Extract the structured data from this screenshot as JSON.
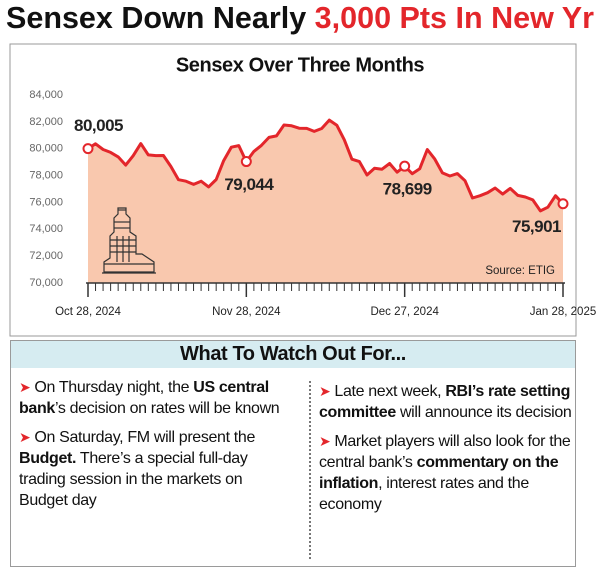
{
  "headline": {
    "plain": "Sensex Down Nearly ",
    "highlight": "3,000 Pts In New Yr"
  },
  "chart_data": {
    "type": "area-line",
    "title": "Sensex Over Three Months",
    "source": "Source: ETIG",
    "categories": [
      "Oct 28, 2024",
      null,
      null,
      null,
      null,
      null,
      null,
      null,
      null,
      null,
      null,
      null,
      null,
      null,
      null,
      null,
      null,
      null,
      null,
      null,
      null,
      "Nov 28, 2024",
      null,
      null,
      null,
      null,
      null,
      null,
      null,
      null,
      null,
      null,
      null,
      null,
      null,
      null,
      null,
      null,
      null,
      null,
      null,
      null,
      "Dec 27, 2024",
      null,
      null,
      null,
      null,
      null,
      null,
      null,
      null,
      null,
      null,
      null,
      null,
      null,
      null,
      null,
      null,
      null,
      null,
      null,
      null,
      "Jan 28, 2025"
    ],
    "values": [
      80005,
      80369,
      79942,
      79725,
      79389,
      78782,
      79477,
      80379,
      79541,
      79486,
      79496,
      78675,
      77691,
      77580,
      77339,
      77578,
      77156,
      77711,
      79118,
      80110,
      80235,
      79044,
      79803,
      80248,
      80846,
      80956,
      81766,
      81709,
      81526,
      81511,
      81290,
      81509,
      82133,
      81748,
      80667,
      79219,
      79042,
      78041,
      78540,
      78472,
      78899,
      78248,
      78699,
      78139,
      78507,
      79943,
      79223,
      78199,
      77965,
      78148,
      77620,
      76330,
      76500,
      76725,
      77073,
      76619,
      77042,
      76520,
      76405,
      76190,
      75367,
      75641,
      76500,
      75901
    ],
    "value_labels": [
      "80,005",
      null,
      null,
      null,
      null,
      null,
      null,
      null,
      null,
      null,
      null,
      null,
      null,
      null,
      null,
      null,
      null,
      null,
      null,
      null,
      null,
      "79,044",
      null,
      null,
      null,
      null,
      null,
      null,
      null,
      null,
      null,
      null,
      null,
      null,
      null,
      null,
      null,
      null,
      null,
      null,
      null,
      null,
      "78,699",
      null,
      null,
      null,
      null,
      null,
      null,
      null,
      null,
      null,
      null,
      null,
      null,
      null,
      null,
      null,
      null,
      null,
      null,
      null,
      null,
      "75,901"
    ],
    "color": "#e3262b",
    "fill_color": "#f9c8ae",
    "ylim": [
      70000,
      84000
    ],
    "yticks": [
      {
        "value": 70000,
        "label": "70,000"
      },
      {
        "value": 72000,
        "label": "72,000"
      },
      {
        "value": 74000,
        "label": "74,000"
      },
      {
        "value": 76000,
        "label": "76,000"
      },
      {
        "value": 78000,
        "label": "78,000"
      },
      {
        "value": 80000,
        "label": "80,000"
      },
      {
        "value": 82000,
        "label": "82,000"
      },
      {
        "value": 84000,
        "label": "84,000"
      }
    ],
    "grid": false
  },
  "watch": {
    "title": "What To Watch Out For...",
    "columns": [
      [
        [
          {
            "text": "On Thursday night, the ",
            "bold": false
          },
          {
            "text": "US central bank",
            "bold": true
          },
          {
            "text": "’s decision on rates will be known",
            "bold": false
          }
        ],
        [
          {
            "text": "On Saturday, FM will present the ",
            "bold": false
          },
          {
            "text": "Budget.",
            "bold": true
          },
          {
            "text": " There’s a special full-day trading session in the markets on Budget day",
            "bold": false
          }
        ]
      ],
      [
        [
          {
            "text": "Late next week, ",
            "bold": false
          },
          {
            "text": "RBI’s rate setting committee",
            "bold": true
          },
          {
            "text": " will announce its decision",
            "bold": false
          }
        ],
        [
          {
            "text": "Market players will also look for the central bank’s ",
            "bold": false
          },
          {
            "text": "commentary on the inflation",
            "bold": true
          },
          {
            "text": ", interest rates and the economy",
            "bold": false
          }
        ]
      ]
    ]
  }
}
